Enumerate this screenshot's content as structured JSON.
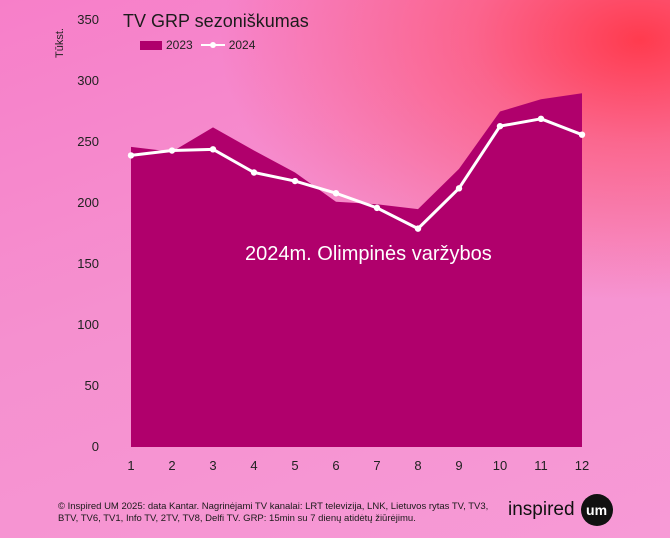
{
  "chart_data": {
    "type": "area",
    "title": "TV GRP sezoniškumas",
    "ylabel": "Tūkst.",
    "xlabel": "",
    "ylim": [
      0,
      350
    ],
    "yticks": [
      0,
      50,
      100,
      150,
      200,
      250,
      300,
      350
    ],
    "categories": [
      "1",
      "2",
      "3",
      "4",
      "5",
      "6",
      "7",
      "8",
      "9",
      "10",
      "11",
      "12"
    ],
    "series": [
      {
        "name": "2023",
        "style": "area",
        "color": "#b0006c",
        "values": [
          246,
          242,
          262,
          243,
          225,
          201,
          199,
          195,
          228,
          275,
          285,
          290
        ]
      },
      {
        "name": "2024",
        "style": "line",
        "color": "#ffffff",
        "values": [
          239,
          243,
          244,
          225,
          218,
          208,
          196,
          179,
          212,
          263,
          269,
          256
        ]
      }
    ],
    "annotation": "2024m. Olimpinės varžybos"
  },
  "footer": {
    "text": "© Inspired UM 2025: data Kantar.  Nagrinėjami TV kanalai: LRT televizija, LNK, Lietuvos rytas TV, TV3, BTV, TV6, TV1, Info TV, 2TV, TV8, Delfi TV. GRP: 15min su 7 dienų atidėtų žiūrėjimu."
  },
  "logo": {
    "text": "inspired",
    "badge": "um"
  }
}
